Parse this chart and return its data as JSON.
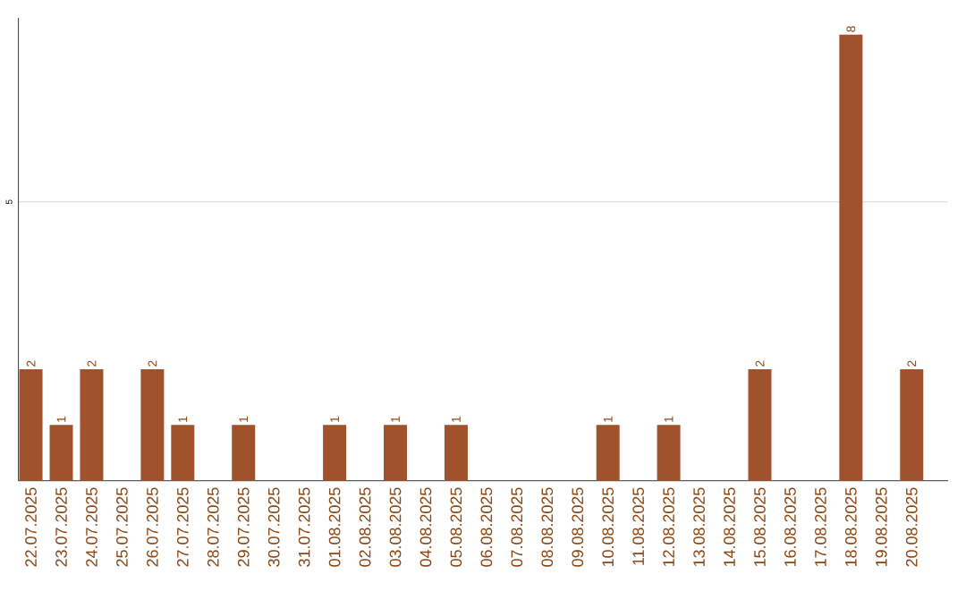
{
  "chart_data": {
    "type": "bar",
    "categories": [
      "22.07.2025",
      "23.07.2025",
      "24.07.2025",
      "25.07.2025",
      "26.07.2025",
      "27.07.2025",
      "28.07.2025",
      "29.07.2025",
      "30.07.2025",
      "31.07.2025",
      "01.08.2025",
      "02.08.2025",
      "03.08.2025",
      "04.08.2025",
      "05.08.2025",
      "06.08.2025",
      "07.08.2025",
      "08.08.2025",
      "09.08.2025",
      "10.08.2025",
      "11.08.2025",
      "12.08.2025",
      "13.08.2025",
      "14.08.2025",
      "15.08.2025",
      "16.08.2025",
      "17.08.2025",
      "18.08.2025",
      "19.08.2025",
      "20.08.2025"
    ],
    "values": [
      2,
      1,
      2,
      0,
      2,
      1,
      0,
      1,
      0,
      0,
      1,
      0,
      1,
      0,
      1,
      0,
      0,
      0,
      0,
      1,
      0,
      1,
      0,
      0,
      2,
      0,
      0,
      8,
      0,
      2
    ],
    "value_labels": [
      "2",
      "1",
      "2",
      null,
      "2",
      "1",
      null,
      "1",
      null,
      null,
      "1",
      null,
      "1",
      null,
      "1",
      null,
      null,
      null,
      null,
      "1",
      null,
      "1",
      null,
      null,
      "2",
      null,
      null,
      "8",
      null,
      "2"
    ],
    "color": "#a0522d",
    "ylim": [
      0,
      8.3
    ],
    "yticks": [
      5
    ],
    "grid": "y"
  }
}
